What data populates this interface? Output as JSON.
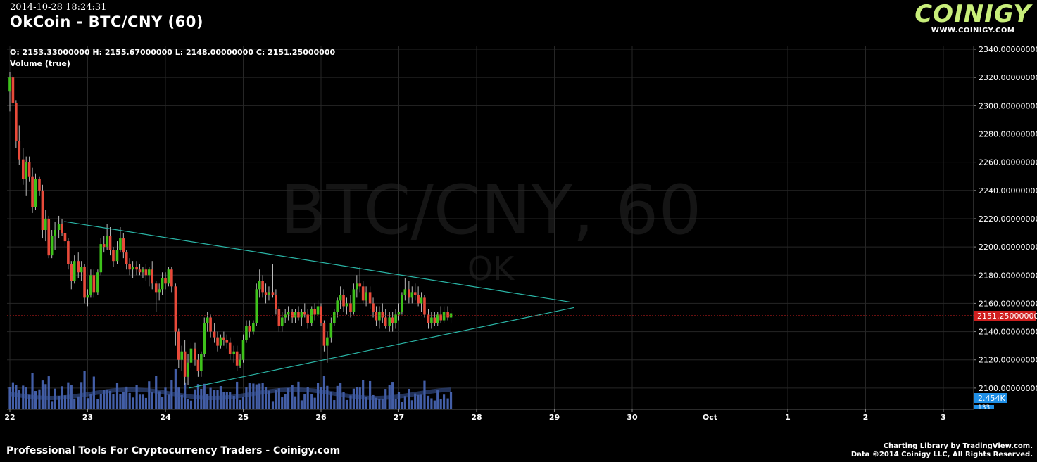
{
  "header": {
    "timestamp": "2014-10-28 18:24:31",
    "title": "OkCoin - BTC/CNY (60)",
    "logo_text": "COINIGY",
    "logo_url": "WWW.COINIGY.COM"
  },
  "legend": {
    "ohlc": "O: 2153.33000000 H: 2155.67000000 L: 2148.00000000 C: 2151.25000000",
    "volume": "Volume (true)"
  },
  "watermark": {
    "symbol": "BTC/CNY, 60",
    "exchange": "OK"
  },
  "footer": {
    "left": "Professional Tools For Cryptocurrency Traders - Coinigy.com",
    "right_line1": "Charting Library by TradingView.com.",
    "right_line2": "Data ©2014 Coinigy LLC, All Rights Reserved."
  },
  "colors": {
    "up": "#3ec21b",
    "down": "#e84a3a",
    "wick": "#bbbbbb",
    "grid": "#262626",
    "volume": "#4f6fc4",
    "trendline": "#2ab5a6",
    "last_price": "#d01f1f",
    "volume_badge": "#1f8fe6",
    "logo": "#c8ee7a"
  },
  "chart_data": {
    "type": "candlestick",
    "interval": "60",
    "ylim": [
      2085,
      2342
    ],
    "y_ticks": [
      "2340.00000000",
      "2320.00000000",
      "2300.00000000",
      "2280.00000000",
      "2260.00000000",
      "2240.00000000",
      "2220.00000000",
      "2200.00000000",
      "2180.00000000",
      "2160.00000000",
      "2140.00000000",
      "2120.00000000",
      "2100.00000000"
    ],
    "x_ticks": [
      "22",
      "23",
      "24",
      "25",
      "26",
      "27",
      "28",
      "29",
      "30",
      "Oct",
      "1",
      "2",
      "3"
    ],
    "last_price": 2151.25,
    "last_price_label": "2151.25000000",
    "volume_label": "2.454K",
    "volume_label_2": "133",
    "candles": [
      [
        22.0,
        2310,
        2324,
        2296,
        2320
      ],
      [
        22.04,
        2320,
        2322,
        2300,
        2302
      ],
      [
        22.08,
        2302,
        2304,
        2270,
        2275
      ],
      [
        22.12,
        2275,
        2286,
        2258,
        2262
      ],
      [
        22.17,
        2262,
        2270,
        2244,
        2248
      ],
      [
        22.21,
        2248,
        2264,
        2236,
        2260
      ],
      [
        22.25,
        2260,
        2264,
        2246,
        2250
      ],
      [
        22.29,
        2250,
        2256,
        2224,
        2228
      ],
      [
        22.33,
        2228,
        2252,
        2226,
        2248
      ],
      [
        22.38,
        2248,
        2250,
        2236,
        2240
      ],
      [
        22.42,
        2240,
        2244,
        2206,
        2212
      ],
      [
        22.46,
        2212,
        2226,
        2204,
        2220
      ],
      [
        22.5,
        2220,
        2222,
        2192,
        2194
      ],
      [
        22.54,
        2194,
        2212,
        2192,
        2208
      ],
      [
        22.58,
        2208,
        2218,
        2198,
        2212
      ],
      [
        22.63,
        2212,
        2222,
        2206,
        2216
      ],
      [
        22.67,
        2216,
        2220,
        2208,
        2210
      ],
      [
        22.71,
        2210,
        2212,
        2200,
        2204
      ],
      [
        22.75,
        2204,
        2206,
        2184,
        2188
      ],
      [
        22.79,
        2188,
        2190,
        2170,
        2176
      ],
      [
        22.83,
        2176,
        2194,
        2174,
        2190
      ],
      [
        22.88,
        2190,
        2196,
        2178,
        2182
      ],
      [
        22.92,
        2182,
        2190,
        2176,
        2186
      ],
      [
        22.96,
        2186,
        2188,
        2160,
        2164
      ],
      [
        23.0,
        2164,
        2170,
        2158,
        2166
      ],
      [
        23.04,
        2166,
        2184,
        2164,
        2180
      ],
      [
        23.08,
        2180,
        2184,
        2164,
        2168
      ],
      [
        23.13,
        2168,
        2184,
        2166,
        2182
      ],
      [
        23.17,
        2182,
        2206,
        2180,
        2202
      ],
      [
        23.21,
        2202,
        2208,
        2196,
        2200
      ],
      [
        23.25,
        2200,
        2216,
        2198,
        2208
      ],
      [
        23.29,
        2208,
        2214,
        2194,
        2198
      ],
      [
        23.33,
        2198,
        2200,
        2186,
        2190
      ],
      [
        23.38,
        2190,
        2204,
        2188,
        2198
      ],
      [
        23.42,
        2198,
        2214,
        2196,
        2206
      ],
      [
        23.46,
        2206,
        2210,
        2192,
        2196
      ],
      [
        23.5,
        2196,
        2198,
        2184,
        2188
      ],
      [
        23.54,
        2188,
        2192,
        2180,
        2184
      ],
      [
        23.58,
        2184,
        2190,
        2178,
        2186
      ],
      [
        23.63,
        2186,
        2190,
        2180,
        2184
      ],
      [
        23.67,
        2184,
        2188,
        2180,
        2182
      ],
      [
        23.71,
        2182,
        2186,
        2178,
        2184
      ],
      [
        23.75,
        2184,
        2188,
        2176,
        2180
      ],
      [
        23.79,
        2180,
        2186,
        2172,
        2184
      ],
      [
        23.83,
        2184,
        2190,
        2170,
        2174
      ],
      [
        23.88,
        2174,
        2176,
        2154,
        2168
      ],
      [
        23.92,
        2168,
        2174,
        2162,
        2170
      ],
      [
        23.96,
        2170,
        2182,
        2166,
        2178
      ],
      [
        24.0,
        2178,
        2182,
        2170,
        2174
      ],
      [
        24.04,
        2174,
        2186,
        2172,
        2184
      ],
      [
        24.08,
        2184,
        2186,
        2168,
        2172
      ],
      [
        24.13,
        2172,
        2174,
        2130,
        2140
      ],
      [
        24.17,
        2140,
        2142,
        2114,
        2120
      ],
      [
        24.21,
        2120,
        2130,
        2112,
        2126
      ],
      [
        24.25,
        2126,
        2134,
        2102,
        2108
      ],
      [
        24.29,
        2108,
        2124,
        2102,
        2118
      ],
      [
        24.33,
        2118,
        2132,
        2114,
        2128
      ],
      [
        24.38,
        2128,
        2132,
        2116,
        2120
      ],
      [
        24.42,
        2120,
        2124,
        2108,
        2112
      ],
      [
        24.46,
        2112,
        2126,
        2108,
        2124
      ],
      [
        24.5,
        2124,
        2150,
        2122,
        2146
      ],
      [
        24.54,
        2146,
        2154,
        2140,
        2150
      ],
      [
        24.58,
        2150,
        2152,
        2136,
        2140
      ],
      [
        24.63,
        2140,
        2146,
        2132,
        2136
      ],
      [
        24.67,
        2136,
        2140,
        2126,
        2130
      ],
      [
        24.71,
        2130,
        2138,
        2128,
        2136
      ],
      [
        24.75,
        2136,
        2140,
        2130,
        2134
      ],
      [
        24.79,
        2134,
        2138,
        2128,
        2132
      ],
      [
        24.83,
        2132,
        2136,
        2120,
        2124
      ],
      [
        24.88,
        2124,
        2130,
        2118,
        2126
      ],
      [
        24.92,
        2126,
        2130,
        2112,
        2116
      ],
      [
        24.96,
        2116,
        2124,
        2114,
        2120
      ],
      [
        25.0,
        2120,
        2138,
        2118,
        2134
      ],
      [
        25.04,
        2134,
        2148,
        2132,
        2144
      ],
      [
        25.08,
        2144,
        2148,
        2136,
        2140
      ],
      [
        25.13,
        2140,
        2148,
        2138,
        2146
      ],
      [
        25.17,
        2146,
        2174,
        2144,
        2170
      ],
      [
        25.21,
        2170,
        2184,
        2164,
        2176
      ],
      [
        25.25,
        2176,
        2180,
        2164,
        2168
      ],
      [
        25.29,
        2168,
        2174,
        2160,
        2166
      ],
      [
        25.33,
        2166,
        2172,
        2162,
        2168
      ],
      [
        25.38,
        2168,
        2188,
        2164,
        2166
      ],
      [
        25.42,
        2166,
        2170,
        2152,
        2156
      ],
      [
        25.46,
        2156,
        2158,
        2140,
        2144
      ],
      [
        25.5,
        2144,
        2154,
        2140,
        2150
      ],
      [
        25.54,
        2150,
        2156,
        2146,
        2152
      ],
      [
        25.58,
        2152,
        2158,
        2148,
        2154
      ],
      [
        25.63,
        2154,
        2156,
        2146,
        2150
      ],
      [
        25.67,
        2150,
        2156,
        2146,
        2154
      ],
      [
        25.71,
        2154,
        2158,
        2148,
        2150
      ],
      [
        25.75,
        2150,
        2156,
        2144,
        2154
      ],
      [
        25.79,
        2154,
        2160,
        2150,
        2152
      ],
      [
        25.83,
        2152,
        2156,
        2142,
        2146
      ],
      [
        25.88,
        2146,
        2158,
        2144,
        2156
      ],
      [
        25.92,
        2156,
        2160,
        2148,
        2152
      ],
      [
        25.96,
        2152,
        2162,
        2150,
        2158
      ],
      [
        26.0,
        2158,
        2160,
        2144,
        2146
      ],
      [
        26.04,
        2146,
        2148,
        2126,
        2130
      ],
      [
        26.08,
        2130,
        2140,
        2118,
        2136
      ],
      [
        26.13,
        2136,
        2150,
        2132,
        2146
      ],
      [
        26.17,
        2146,
        2156,
        2144,
        2154
      ],
      [
        26.21,
        2154,
        2164,
        2150,
        2162
      ],
      [
        26.25,
        2162,
        2172,
        2156,
        2166
      ],
      [
        26.29,
        2166,
        2170,
        2154,
        2158
      ],
      [
        26.33,
        2158,
        2164,
        2152,
        2160
      ],
      [
        26.38,
        2160,
        2166,
        2150,
        2154
      ],
      [
        26.42,
        2154,
        2174,
        2152,
        2170
      ],
      [
        26.46,
        2170,
        2180,
        2164,
        2174
      ],
      [
        26.5,
        2174,
        2186,
        2168,
        2172
      ],
      [
        26.54,
        2172,
        2176,
        2160,
        2162
      ],
      [
        26.58,
        2162,
        2172,
        2158,
        2168
      ],
      [
        26.63,
        2168,
        2172,
        2156,
        2160
      ],
      [
        26.67,
        2160,
        2164,
        2150,
        2154
      ],
      [
        26.71,
        2154,
        2158,
        2144,
        2148
      ],
      [
        26.75,
        2148,
        2158,
        2142,
        2154
      ],
      [
        26.79,
        2154,
        2160,
        2146,
        2150
      ],
      [
        26.83,
        2150,
        2156,
        2142,
        2144
      ],
      [
        26.88,
        2144,
        2154,
        2140,
        2150
      ],
      [
        26.92,
        2150,
        2154,
        2140,
        2146
      ],
      [
        26.96,
        2146,
        2156,
        2142,
        2152
      ],
      [
        27.0,
        2152,
        2160,
        2148,
        2154
      ],
      [
        27.04,
        2154,
        2168,
        2152,
        2166
      ],
      [
        27.08,
        2166,
        2178,
        2162,
        2170
      ],
      [
        27.13,
        2170,
        2176,
        2160,
        2164
      ],
      [
        27.17,
        2164,
        2172,
        2160,
        2168
      ],
      [
        27.21,
        2168,
        2174,
        2162,
        2166
      ],
      [
        27.25,
        2166,
        2172,
        2158,
        2160
      ],
      [
        27.29,
        2160,
        2168,
        2154,
        2164
      ],
      [
        27.33,
        2164,
        2166,
        2150,
        2152
      ],
      [
        27.38,
        2152,
        2156,
        2142,
        2146
      ],
      [
        27.42,
        2146,
        2154,
        2142,
        2150
      ],
      [
        27.46,
        2150,
        2154,
        2144,
        2146
      ],
      [
        27.5,
        2146,
        2154,
        2144,
        2152
      ],
      [
        27.54,
        2152,
        2158,
        2146,
        2148
      ],
      [
        27.58,
        2148,
        2158,
        2146,
        2154
      ],
      [
        27.63,
        2154,
        2158,
        2148,
        2150
      ],
      [
        27.67,
        2150,
        2156,
        2146,
        2153
      ]
    ],
    "volume_max": 2454,
    "volume_level": 0.14,
    "trendlines": [
      {
        "from": [
          22.7,
          2218
        ],
        "to": [
          29.2,
          2161
        ]
      },
      {
        "from": [
          24.3,
          2100
        ],
        "to": [
          29.25,
          2157
        ]
      }
    ]
  }
}
